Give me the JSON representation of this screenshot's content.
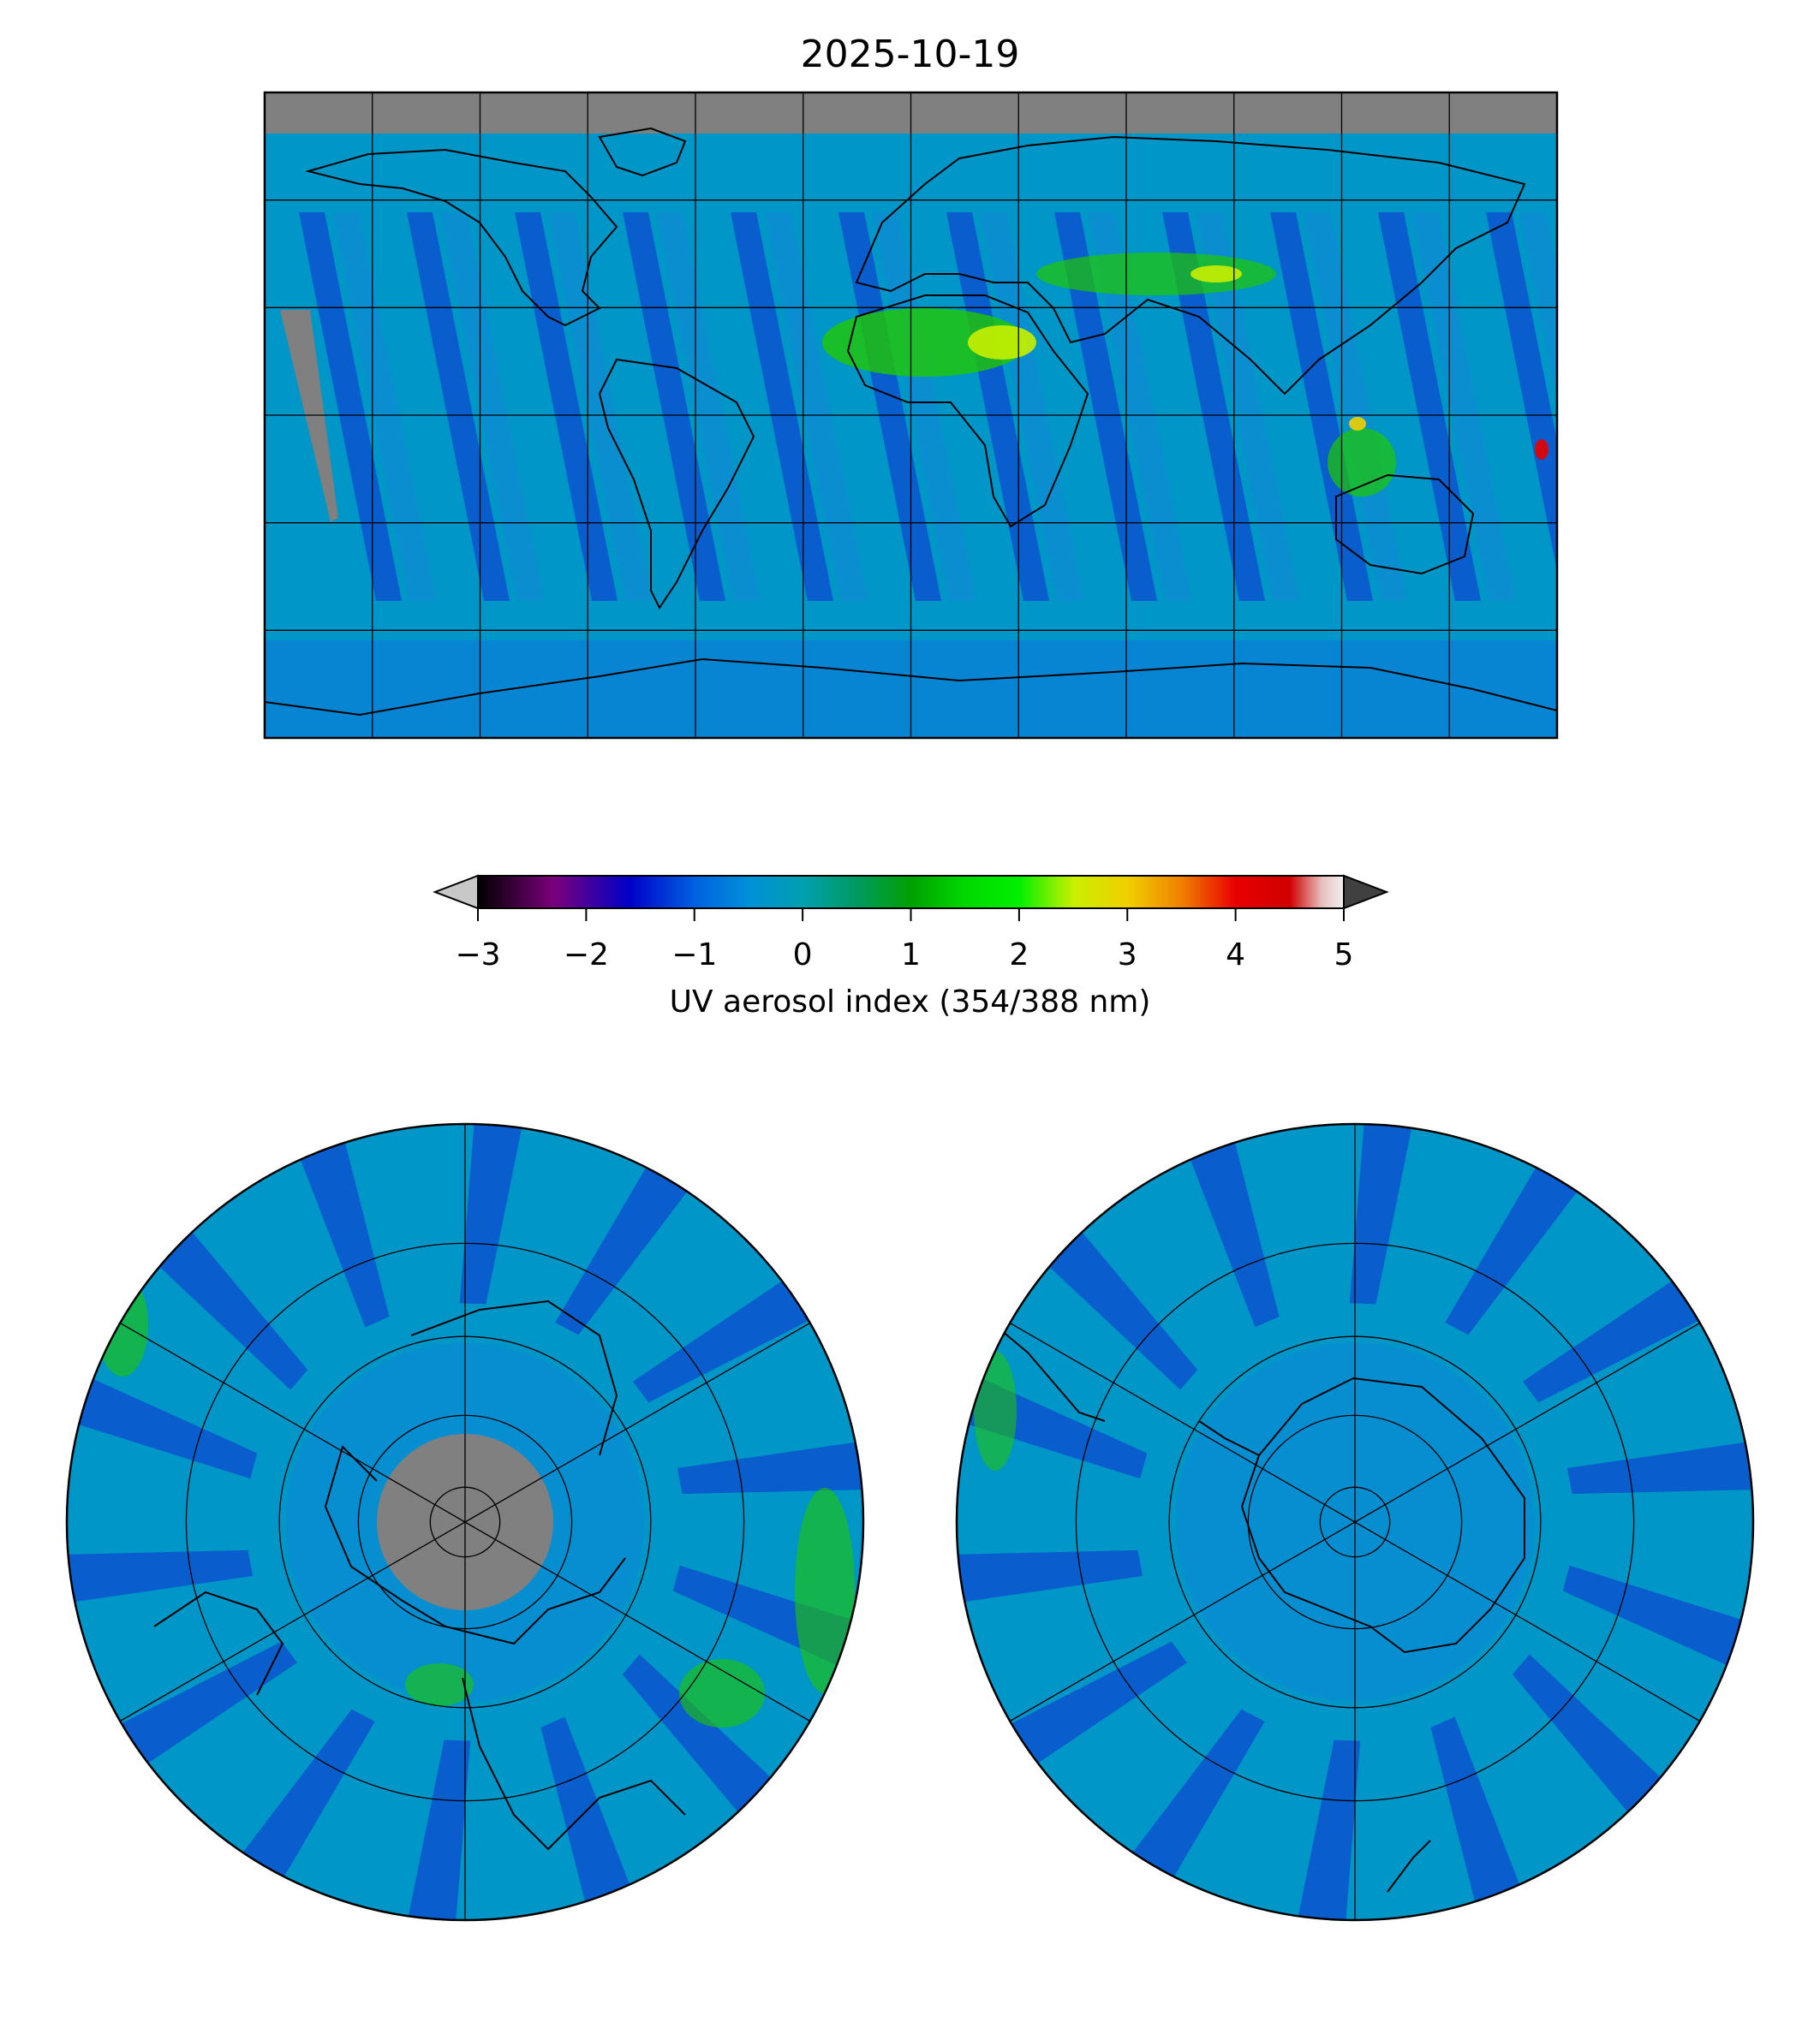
{
  "title": "2025-10-19",
  "colorbar": {
    "label": "UV aerosol index (354/388 nm)",
    "ticks": [
      "−3",
      "−2",
      "−1",
      "0",
      "1",
      "2",
      "3",
      "4",
      "5"
    ],
    "range": [
      -3,
      5
    ],
    "under_color": "#c8c8c8",
    "over_color": "#404040",
    "stops": [
      {
        "v": -3.0,
        "c": "#000000"
      },
      {
        "v": -2.3,
        "c": "#7a007a"
      },
      {
        "v": -1.6,
        "c": "#0000c8"
      },
      {
        "v": -1.0,
        "c": "#0060e0"
      },
      {
        "v": -0.5,
        "c": "#0090d8"
      },
      {
        "v": 0.0,
        "c": "#00a0b0"
      },
      {
        "v": 0.5,
        "c": "#009a60"
      },
      {
        "v": 1.0,
        "c": "#00a000"
      },
      {
        "v": 1.5,
        "c": "#00d800"
      },
      {
        "v": 2.0,
        "c": "#00f000"
      },
      {
        "v": 2.5,
        "c": "#c8f000"
      },
      {
        "v": 3.0,
        "c": "#f0d000"
      },
      {
        "v": 3.5,
        "c": "#f08000"
      },
      {
        "v": 4.0,
        "c": "#e80000"
      },
      {
        "v": 4.5,
        "c": "#d00000"
      },
      {
        "v": 4.8,
        "c": "#e8c0c0"
      },
      {
        "v": 5.0,
        "c": "#f0f0f0"
      }
    ]
  },
  "colors": {
    "missing": "#808080",
    "ocean_base": "#0096c8",
    "low_aerosol": "#1030d0",
    "high_aerosol": "#20c800",
    "outline": "#000000"
  },
  "map": {
    "projection": "equirectangular",
    "lon_gridlines": [
      -150,
      -120,
      -90,
      -60,
      -30,
      0,
      30,
      60,
      90,
      120,
      150
    ],
    "lat_gridlines": [
      -60,
      -30,
      0,
      30,
      60
    ],
    "missing_north_of_lat": 78
  },
  "polar_maps": [
    {
      "name": "north-polar-map",
      "pole": "north",
      "missing_cap_lat": 80,
      "circles_lat": [
        80,
        60,
        40,
        20
      ]
    },
    {
      "name": "south-polar-map",
      "pole": "south",
      "circles_lat": [
        -80,
        -60,
        -40,
        -20
      ]
    }
  ]
}
